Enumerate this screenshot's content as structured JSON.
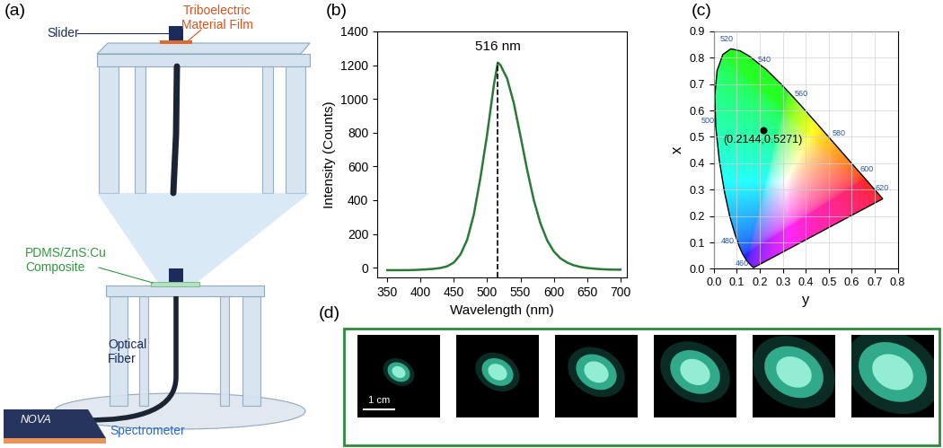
{
  "panel_labels": {
    "a": "(a)",
    "b": "(b)",
    "c": "(c)",
    "d": "(d)"
  },
  "diagram": {
    "slider": "Slider",
    "film": "Triboelectric\nMaterial Film",
    "composite": "PDMS/ZnS:Cu\nComposite",
    "fiber": "Optical\nFiber",
    "spectrometer": "Spectrometer",
    "brand": "NOVA"
  },
  "chart_data": [
    {
      "type": "line",
      "x": [
        350,
        360,
        370,
        380,
        390,
        400,
        410,
        420,
        430,
        440,
        450,
        460,
        470,
        480,
        490,
        500,
        510,
        516,
        520,
        530,
        540,
        550,
        560,
        570,
        580,
        590,
        600,
        610,
        620,
        630,
        640,
        650,
        660,
        670,
        680,
        690,
        700
      ],
      "values": [
        -15,
        -15,
        -15,
        -15,
        -14,
        -12,
        -10,
        -7,
        -2,
        8,
        30,
        78,
        165,
        315,
        535,
        790,
        1080,
        1215,
        1200,
        1120,
        975,
        780,
        580,
        400,
        262,
        162,
        96,
        55,
        30,
        14,
        4,
        -2,
        -6,
        -9,
        -11,
        -12,
        -12
      ],
      "color": "#2a7a36",
      "xlabel": "Wavelength (nm)",
      "ylabel": "Intensity (Counts)",
      "xlim": [
        335,
        710
      ],
      "ylim": [
        -60,
        1400
      ],
      "xticks": [
        350,
        400,
        450,
        500,
        550,
        600,
        650,
        700
      ],
      "yticks": [
        0,
        200,
        400,
        600,
        800,
        1000,
        1200,
        1400
      ],
      "annotations": [
        {
          "text": "516 nm",
          "x": 516
        }
      ]
    },
    {
      "type": "scatter",
      "x": [
        0.2144
      ],
      "values": [
        0.5271
      ],
      "value_labels": [
        "(0.2144,0.5271)"
      ],
      "data_labels": true,
      "color": "#000000",
      "xlabel": "y",
      "ylabel": "x",
      "xlim": [
        0.0,
        0.8
      ],
      "ylim": [
        0.0,
        0.9
      ],
      "xticks": [
        0.0,
        0.1,
        0.2,
        0.3,
        0.4,
        0.5,
        0.6,
        0.7,
        0.8
      ],
      "yticks": [
        0.0,
        0.1,
        0.2,
        0.3,
        0.4,
        0.5,
        0.6,
        0.7,
        0.8,
        0.9
      ],
      "grid": true,
      "spectral_locus": {
        "wavelengths": [
          380,
          400,
          420,
          440,
          450,
          460,
          470,
          475,
          480,
          485,
          490,
          495,
          500,
          505,
          510,
          515,
          520,
          525,
          530,
          540,
          550,
          560,
          570,
          580,
          590,
          600,
          610,
          620,
          640,
          660,
          700
        ],
        "x": [
          0.1741,
          0.1733,
          0.1714,
          0.1644,
          0.1566,
          0.144,
          0.1241,
          0.1096,
          0.0913,
          0.0687,
          0.0454,
          0.0235,
          0.0082,
          0.0039,
          0.0139,
          0.0389,
          0.0743,
          0.1142,
          0.1547,
          0.2296,
          0.3016,
          0.3731,
          0.4441,
          0.5125,
          0.5752,
          0.627,
          0.6658,
          0.6915,
          0.719,
          0.73,
          0.7347
        ],
        "y": [
          0.005,
          0.0048,
          0.0051,
          0.0109,
          0.0177,
          0.0297,
          0.0578,
          0.0868,
          0.1327,
          0.2007,
          0.295,
          0.4127,
          0.5384,
          0.6548,
          0.7502,
          0.812,
          0.8338,
          0.8262,
          0.8059,
          0.7543,
          0.6923,
          0.6245,
          0.5547,
          0.4866,
          0.4242,
          0.3725,
          0.334,
          0.3083,
          0.2809,
          0.27,
          0.2653
        ]
      },
      "locus_labels": [
        460,
        480,
        500,
        520,
        540,
        560,
        580,
        600,
        620
      ]
    }
  ],
  "photos": {
    "count": 6,
    "scale_bar": "1 cm"
  }
}
